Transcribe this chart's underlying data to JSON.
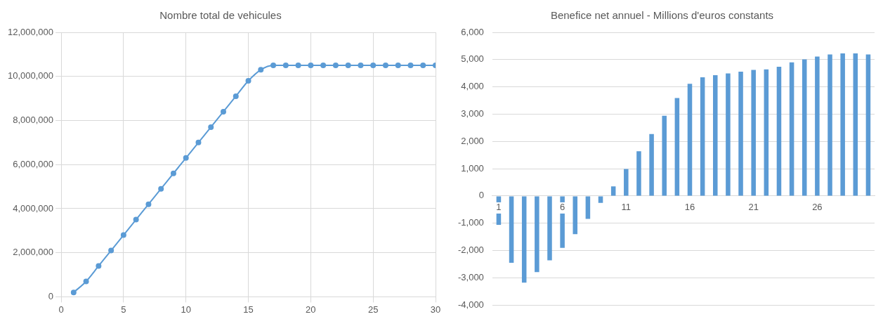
{
  "chart_data": [
    {
      "type": "line",
      "title": "Nombre total de vehicules",
      "x": [
        1,
        2,
        3,
        4,
        5,
        6,
        7,
        8,
        9,
        10,
        11,
        12,
        13,
        14,
        15,
        16,
        17,
        18,
        19,
        20,
        21,
        22,
        23,
        24,
        25,
        26,
        27,
        28,
        29,
        30
      ],
      "series": [
        {
          "color": "#5b9bd5",
          "values": [
            200000,
            700000,
            1400000,
            2100000,
            2800000,
            3500000,
            4200000,
            4900000,
            5600000,
            6300000,
            7000000,
            7700000,
            8400000,
            9100000,
            9800000,
            10300000,
            10500000,
            10500000,
            10500000,
            10500000,
            10500000,
            10500000,
            10500000,
            10500000,
            10500000,
            10500000,
            10500000,
            10500000,
            10500000,
            10500000
          ]
        }
      ],
      "xlim": [
        0,
        30
      ],
      "xticks": [
        0,
        5,
        10,
        15,
        20,
        25,
        30
      ],
      "ylim": [
        0,
        12000000
      ],
      "yticks": [
        0,
        {
          "value": 2000000,
          "label": "2,000,000"
        },
        {
          "value": 4000000,
          "label": "4,000,000"
        },
        {
          "value": 6000000,
          "label": "6,000,000"
        },
        {
          "value": 8000000,
          "label": "8,000,000"
        },
        {
          "value": 10000000,
          "label": "10,000,000"
        },
        {
          "value": 12000000,
          "label": "12,000,000"
        }
      ],
      "grid": true,
      "marker": "circle",
      "line_style": "solid"
    },
    {
      "type": "bar",
      "title": "Benefice net annuel - Millions d'euros constants",
      "categories": [
        "1",
        null,
        null,
        null,
        null,
        "6",
        null,
        null,
        null,
        null,
        "11",
        null,
        null,
        null,
        null,
        "16",
        null,
        null,
        null,
        null,
        "21",
        null,
        null,
        null,
        null,
        "26",
        null,
        null,
        null,
        null
      ],
      "series": [
        {
          "color": "#5b9bd5",
          "values": [
            -1060,
            -2450,
            -3180,
            -2790,
            -2360,
            -1900,
            -1400,
            -840,
            -250,
            350,
            990,
            1640,
            2270,
            2940,
            3590,
            4110,
            4350,
            4430,
            4490,
            4560,
            4620,
            4640,
            4740,
            4900,
            5010,
            5110,
            5190,
            5230,
            5230,
            5190
          ]
        }
      ],
      "ylim": [
        -4000,
        6000
      ],
      "yticks": [
        {
          "value": -4000,
          "label": "-4,000"
        },
        {
          "value": -3000,
          "label": "-3,000"
        },
        {
          "value": -2000,
          "label": "-2,000"
        },
        {
          "value": -1000,
          "label": "-1,000"
        },
        0,
        {
          "value": 1000,
          "label": "1,000"
        },
        {
          "value": 2000,
          "label": "2,000"
        },
        {
          "value": 3000,
          "label": "3,000"
        },
        {
          "value": 4000,
          "label": "4,000"
        },
        {
          "value": 5000,
          "label": "5,000"
        },
        {
          "value": 6000,
          "label": "6,000"
        }
      ],
      "grid": "y"
    }
  ]
}
